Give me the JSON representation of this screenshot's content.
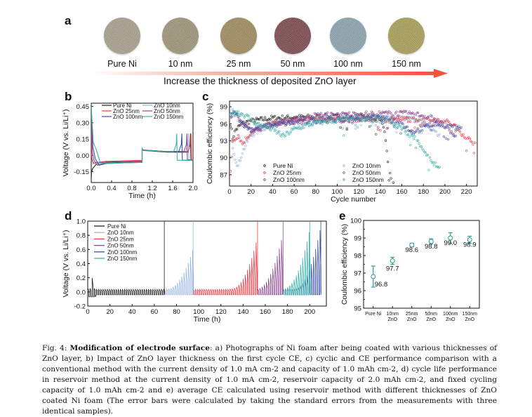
{
  "panel_a": {
    "letter": "a",
    "samples": [
      {
        "label": "Pure Ni",
        "color": "#a59e8c"
      },
      {
        "label": "10 nm",
        "color": "#9c9378"
      },
      {
        "label": "25 nm",
        "color": "#9c8a5e"
      },
      {
        "label": "50 nm",
        "color": "#7b4a4e"
      },
      {
        "label": "100 nm",
        "color": "#8aa1ab"
      },
      {
        "label": "150 nm",
        "color": "#a69d58"
      }
    ],
    "arrow_caption": "Increase the thickness of deposited ZnO layer",
    "arrow_color": "#f0553a"
  },
  "series_colors": {
    "Pure Ni": "#222222",
    "ZnO 10nm": "#9bb6e2",
    "ZnO 25nm": "#e8404a",
    "ZnO 50nm": "#8e4a92",
    "ZnO 100nm": "#3b4fa6",
    "ZnO 150nm": "#3ab3ac"
  },
  "chart_data": [
    {
      "panel": "b",
      "type": "line",
      "title": "",
      "xlabel": "Time (h)",
      "ylabel": "Voltage (V vs. Li/Li⁺)",
      "xlim": [
        0,
        2.0
      ],
      "ylim": [
        -0.25,
        0.48
      ],
      "xticks": [
        "0.0",
        "0.4",
        "0.8",
        "1.2",
        "1.6",
        "2.0"
      ],
      "xtick_values": [
        0,
        0.4,
        0.8,
        1.2,
        1.6,
        2.0
      ],
      "yticks": [
        "-0.15",
        "0.00",
        "0.15",
        "0.30",
        "0.45"
      ],
      "ytick_values": [
        -0.15,
        0,
        0.15,
        0.3,
        0.45
      ],
      "legend": [
        "Pure Ni",
        "ZnO 25nm",
        "ZnO 100nm",
        "ZnO 10nm",
        "ZnO 50nm",
        "ZnO 150nm"
      ],
      "legend_position": "top",
      "series": [
        {
          "name": "Pure Ni",
          "x": [
            0,
            0.005,
            0.03,
            0.1,
            0.2,
            0.5,
            1.0,
            1.0,
            1.02,
            1.5,
            1.9,
            1.94,
            1.95,
            1.96,
            2.0
          ],
          "y": [
            -0.22,
            -0.15,
            -0.12,
            -0.08,
            -0.065,
            -0.06,
            -0.055,
            0.05,
            0.045,
            0.03,
            0.03,
            0.1,
            0.2,
            -0.04,
            -0.04
          ]
        },
        {
          "name": "ZnO 10nm",
          "x": [
            0,
            0.01,
            0.05,
            0.1,
            0.2,
            0.5,
            1.0,
            1.0,
            1.02,
            1.5,
            1.85,
            1.9,
            1.91,
            1.92,
            2.0
          ],
          "y": [
            0.45,
            0.0,
            -0.07,
            -0.08,
            -0.07,
            -0.065,
            -0.06,
            0.055,
            0.05,
            0.035,
            0.035,
            0.1,
            0.2,
            -0.04,
            -0.04
          ]
        },
        {
          "name": "ZnO 25nm",
          "x": [
            0,
            0.01,
            0.04,
            0.1,
            0.3,
            0.6,
            1.0,
            1.0,
            1.02,
            1.5,
            1.9,
            1.95,
            1.96,
            1.97,
            2.0
          ],
          "y": [
            0.45,
            -0.03,
            -0.075,
            -0.065,
            -0.055,
            -0.05,
            -0.045,
            0.05,
            0.045,
            0.035,
            0.035,
            0.1,
            0.2,
            -0.04,
            -0.04
          ]
        },
        {
          "name": "ZnO 50nm",
          "x": [
            0,
            0.02,
            0.06,
            0.12,
            0.3,
            0.6,
            1.0,
            1.0,
            1.02,
            1.5,
            1.82,
            1.87,
            1.88,
            1.89,
            2.0
          ],
          "y": [
            0.45,
            0.03,
            -0.05,
            -0.09,
            -0.07,
            -0.065,
            -0.06,
            0.055,
            0.05,
            0.035,
            0.035,
            0.1,
            0.2,
            -0.04,
            -0.04
          ]
        },
        {
          "name": "ZnO 100nm",
          "x": [
            0,
            0.03,
            0.08,
            0.15,
            0.3,
            0.6,
            1.0,
            1.0,
            1.02,
            1.5,
            1.72,
            1.77,
            1.78,
            1.79,
            2.0
          ],
          "y": [
            0.45,
            0.08,
            -0.03,
            -0.09,
            -0.075,
            -0.07,
            -0.065,
            0.06,
            0.05,
            0.035,
            0.035,
            0.1,
            0.2,
            -0.045,
            -0.045
          ]
        },
        {
          "name": "ZnO 150nm",
          "x": [
            0,
            0.04,
            0.1,
            0.18,
            0.3,
            0.6,
            1.0,
            1.0,
            1.02,
            1.5,
            1.62,
            1.67,
            1.68,
            1.69,
            2.0
          ],
          "y": [
            0.45,
            0.12,
            0.05,
            -0.07,
            -0.075,
            -0.07,
            -0.065,
            0.065,
            0.05,
            0.035,
            0.035,
            0.1,
            0.2,
            -0.045,
            -0.045
          ]
        }
      ]
    },
    {
      "panel": "c",
      "type": "scatter",
      "title": "",
      "xlabel": "Cycle number",
      "ylabel": "Coulombic efficiency (%)",
      "xlim": [
        0,
        230
      ],
      "ylim": [
        85,
        100
      ],
      "xticks": [
        "0",
        "20",
        "40",
        "60",
        "80",
        "100",
        "120",
        "140",
        "160",
        "180",
        "200",
        "220"
      ],
      "xtick_values": [
        0,
        20,
        40,
        60,
        80,
        100,
        120,
        140,
        160,
        180,
        200,
        220
      ],
      "yticks": [
        "87",
        "90",
        "93",
        "96",
        "99"
      ],
      "ytick_values": [
        87,
        90,
        93,
        96,
        99
      ],
      "legend": [
        "Pure Ni",
        "ZnO 25nm",
        "ZnO 100nm",
        "ZnO 10nm",
        "ZnO 50nm",
        "ZnO 150nm"
      ],
      "legend_position": "bottom-left",
      "series": [
        {
          "name": "Pure Ni",
          "end_cycle": 152,
          "profile": [
            [
              1,
              96.0
            ],
            [
              3,
              93.5
            ],
            [
              6,
              95.0
            ],
            [
              12,
              96.0
            ],
            [
              20,
              96.5
            ],
            [
              40,
              97.0
            ],
            [
              80,
              97.2
            ],
            [
              120,
              97.3
            ],
            [
              140,
              97.0
            ],
            [
              144,
              95.0
            ],
            [
              146,
              91.0
            ],
            [
              148,
              88.0
            ],
            [
              150,
              86.0
            ],
            [
              152,
              85.5
            ]
          ]
        },
        {
          "name": "ZnO 10nm",
          "end_cycle": 195,
          "profile": [
            [
              1,
              94.5
            ],
            [
              3,
              92.0
            ],
            [
              5,
              90.0
            ],
            [
              8,
              88.5
            ],
            [
              12,
              91.0
            ],
            [
              20,
              94.0
            ],
            [
              40,
              96.0
            ],
            [
              80,
              96.8
            ],
            [
              140,
              97.2
            ],
            [
              170,
              96.8
            ],
            [
              185,
              95.5
            ],
            [
              195,
              94.0
            ]
          ]
        },
        {
          "name": "ZnO 25nm",
          "end_cycle": 228,
          "profile": [
            [
              1,
              87.5
            ],
            [
              3,
              93.0
            ],
            [
              8,
              94.0
            ],
            [
              12,
              92.5
            ],
            [
              20,
              94.5
            ],
            [
              40,
              96.0
            ],
            [
              80,
              96.8
            ],
            [
              140,
              96.8
            ],
            [
              180,
              96.8
            ],
            [
              200,
              96.5
            ],
            [
              210,
              95.5
            ],
            [
              220,
              93.5
            ],
            [
              228,
              92.5
            ]
          ]
        },
        {
          "name": "ZnO 50nm",
          "end_cycle": 210,
          "profile": [
            [
              1,
              97.5
            ],
            [
              5,
              97.8
            ],
            [
              10,
              96.5
            ],
            [
              20,
              94.8
            ],
            [
              40,
              96.0
            ],
            [
              80,
              97.5
            ],
            [
              140,
              97.8
            ],
            [
              170,
              97.8
            ],
            [
              190,
              97.0
            ],
            [
              200,
              95.5
            ],
            [
              210,
              93.5
            ]
          ]
        },
        {
          "name": "ZnO 100nm",
          "end_cycle": 215,
          "profile": [
            [
              1,
              97.5
            ],
            [
              5,
              97.8
            ],
            [
              15,
              95.5
            ],
            [
              20,
              95.0
            ],
            [
              40,
              95.8
            ],
            [
              80,
              96.5
            ],
            [
              140,
              97.0
            ],
            [
              160,
              96.0
            ],
            [
              170,
              94.5
            ],
            [
              190,
              96.0
            ],
            [
              205,
              95.5
            ],
            [
              215,
              95.0
            ]
          ]
        },
        {
          "name": "ZnO 150nm",
          "end_cycle": 195,
          "profile": [
            [
              1,
              98.0
            ],
            [
              5,
              98.2
            ],
            [
              15,
              97.5
            ],
            [
              25,
              96.0
            ],
            [
              40,
              95.0
            ],
            [
              50,
              93.8
            ],
            [
              60,
              95.0
            ],
            [
              80,
              96.2
            ],
            [
              120,
              97.0
            ],
            [
              150,
              96.5
            ],
            [
              175,
              93.0
            ],
            [
              185,
              90.0
            ],
            [
              195,
              88.0
            ]
          ]
        }
      ]
    },
    {
      "panel": "d",
      "type": "line",
      "title": "",
      "xlabel": "Time (h)",
      "ylabel": "Voltage (V vs. Li/Li⁺)",
      "xlim": [
        0,
        215
      ],
      "ylim": [
        -0.2,
        1.0
      ],
      "xticks": [
        "0",
        "20",
        "40",
        "60",
        "80",
        "100",
        "120",
        "140",
        "160",
        "180",
        "200"
      ],
      "xtick_values": [
        0,
        20,
        40,
        60,
        80,
        100,
        120,
        140,
        160,
        180,
        200
      ],
      "yticks": [
        "-0.2",
        "0.0",
        "0.2",
        "0.4",
        "0.6",
        "0.8",
        "1.0"
      ],
      "ytick_values": [
        -0.2,
        0,
        0.2,
        0.4,
        0.6,
        0.8,
        1.0
      ],
      "legend": [
        "Pure Ni",
        "ZnO 10nm",
        "ZnO 25nm",
        "ZnO 50nm",
        "ZnO 100nm",
        "ZnO 150nm"
      ],
      "legend_position": "top-left",
      "series": [
        {
          "name": "Pure Ni",
          "start_h": 0,
          "end_h": 69,
          "failure_h": 69,
          "peak_before_failure": 0.05
        },
        {
          "name": "ZnO 10nm",
          "start_h": 69,
          "end_h": 95,
          "failure_h": 95,
          "peak_before_failure": 0.58
        },
        {
          "name": "ZnO 25nm",
          "start_h": 95,
          "end_h": 153,
          "failure_h": 153,
          "peak_before_failure": 0.75
        },
        {
          "name": "ZnO 50nm",
          "start_h": 153,
          "end_h": 176,
          "failure_h": 176,
          "peak_before_failure": 0.8
        },
        {
          "name": "ZnO 150nm",
          "start_h": 176,
          "end_h": 200,
          "failure_h": 200,
          "peak_before_failure": 0.85
        },
        {
          "name": "ZnO 100nm",
          "start_h": 176,
          "end_h": 210,
          "failure_h": 210,
          "peak_before_failure": 0.9
        }
      ]
    },
    {
      "panel": "e",
      "type": "scatter",
      "title": "",
      "xlabel": "",
      "ylabel": "Coulombic efficiency (%)",
      "ylim": [
        95,
        100
      ],
      "yticks": [
        "95",
        "96",
        "97",
        "98",
        "99",
        "100"
      ],
      "ytick_values": [
        95,
        96,
        97,
        98,
        99,
        100
      ],
      "categories": [
        [
          "Pure Ni",
          ""
        ],
        [
          "10nm",
          "ZnO"
        ],
        [
          "25nm",
          "ZnO"
        ],
        [
          "50nm",
          "ZnO"
        ],
        [
          "100nm",
          "ZnO"
        ],
        [
          "150nm",
          "ZnO"
        ]
      ],
      "values": [
        96.8,
        97.7,
        98.6,
        98.8,
        99.0,
        98.9
      ],
      "value_labels": [
        "96.8",
        "97.7",
        "98.6",
        "98.8",
        "99.0",
        "98.9"
      ],
      "error": [
        0.6,
        0.2,
        0.1,
        0.15,
        0.3,
        0.2
      ],
      "color": "#2a9d95"
    }
  ],
  "caption": {
    "prefix": "Fig. 4: ",
    "bold_title": "Modification of electrode surface",
    "body": ": a) Photographs of Ni foam after being coated with various thicknesses of ZnO layer, b) Impact of ZnO layer thickness on the first cycle CE, c) cyclic and CE performance comparison with a conventional method with the current density of 1.0 mA cm-2 and capacity of 1.0 mAh cm-2, d) cycle life performance in reservoir method at the current density of 1.0 mA cm-2, reservoir capacity of 2.0 mAh cm-2, and fixed cycling capacity of 1.0 mAh cm-2 and e) average CE calculated using reservoir method with different thicknesses of ZnO coated Ni foam (The error bars were calculated by taking the standard errors from the measurements with three identical samples)."
  }
}
